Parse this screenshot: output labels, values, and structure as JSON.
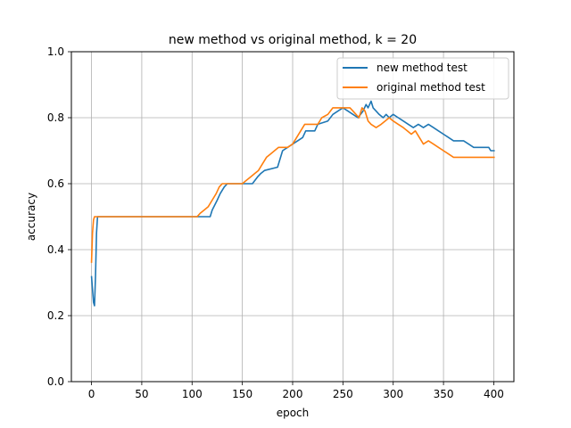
{
  "chart_data": {
    "type": "line",
    "title": "new method vs original method, k = 20",
    "xlabel": "epoch",
    "ylabel": "accuracy",
    "xlim": [
      -20,
      420
    ],
    "ylim": [
      0.0,
      1.0
    ],
    "grid": true,
    "legend_position": "top-right",
    "xticks": [
      0,
      50,
      100,
      150,
      200,
      250,
      300,
      350,
      400
    ],
    "yticks": [
      0.0,
      0.2,
      0.4,
      0.6,
      0.8,
      1.0
    ],
    "xtick_labels": [
      "0",
      "50",
      "100",
      "150",
      "200",
      "250",
      "300",
      "350",
      "400"
    ],
    "ytick_labels": [
      "0.0",
      "0.2",
      "0.4",
      "0.6",
      "0.8",
      "1.0"
    ],
    "series": [
      {
        "name": "new method test",
        "color": "#1f77b4",
        "points": [
          [
            0,
            0.32
          ],
          [
            1,
            0.28
          ],
          [
            2,
            0.24
          ],
          [
            3,
            0.23
          ],
          [
            4,
            0.32
          ],
          [
            5,
            0.45
          ],
          [
            6,
            0.5
          ],
          [
            110,
            0.5
          ],
          [
            118,
            0.5
          ],
          [
            120,
            0.52
          ],
          [
            125,
            0.55
          ],
          [
            128,
            0.57
          ],
          [
            132,
            0.59
          ],
          [
            135,
            0.6
          ],
          [
            160,
            0.6
          ],
          [
            165,
            0.62
          ],
          [
            168,
            0.63
          ],
          [
            172,
            0.64
          ],
          [
            185,
            0.65
          ],
          [
            190,
            0.7
          ],
          [
            195,
            0.71
          ],
          [
            200,
            0.72
          ],
          [
            205,
            0.73
          ],
          [
            210,
            0.74
          ],
          [
            213,
            0.76
          ],
          [
            222,
            0.76
          ],
          [
            225,
            0.78
          ],
          [
            235,
            0.79
          ],
          [
            240,
            0.81
          ],
          [
            245,
            0.82
          ],
          [
            250,
            0.83
          ],
          [
            255,
            0.82
          ],
          [
            260,
            0.81
          ],
          [
            265,
            0.8
          ],
          [
            270,
            0.82
          ],
          [
            273,
            0.84
          ],
          [
            275,
            0.83
          ],
          [
            278,
            0.85
          ],
          [
            280,
            0.83
          ],
          [
            283,
            0.82
          ],
          [
            286,
            0.81
          ],
          [
            290,
            0.8
          ],
          [
            293,
            0.81
          ],
          [
            296,
            0.8
          ],
          [
            300,
            0.81
          ],
          [
            305,
            0.8
          ],
          [
            310,
            0.79
          ],
          [
            315,
            0.78
          ],
          [
            320,
            0.77
          ],
          [
            325,
            0.78
          ],
          [
            330,
            0.77
          ],
          [
            335,
            0.78
          ],
          [
            340,
            0.77
          ],
          [
            345,
            0.76
          ],
          [
            350,
            0.75
          ],
          [
            355,
            0.74
          ],
          [
            360,
            0.73
          ],
          [
            370,
            0.73
          ],
          [
            375,
            0.72
          ],
          [
            380,
            0.71
          ],
          [
            395,
            0.71
          ],
          [
            397,
            0.7
          ],
          [
            401,
            0.7
          ]
        ]
      },
      {
        "name": "original method test",
        "color": "#ff7f0e",
        "points": [
          [
            0,
            0.36
          ],
          [
            1,
            0.45
          ],
          [
            2,
            0.49
          ],
          [
            3,
            0.5
          ],
          [
            105,
            0.5
          ],
          [
            108,
            0.51
          ],
          [
            112,
            0.52
          ],
          [
            116,
            0.53
          ],
          [
            120,
            0.55
          ],
          [
            124,
            0.57
          ],
          [
            127,
            0.59
          ],
          [
            130,
            0.6
          ],
          [
            150,
            0.6
          ],
          [
            154,
            0.61
          ],
          [
            158,
            0.62
          ],
          [
            162,
            0.63
          ],
          [
            166,
            0.64
          ],
          [
            170,
            0.66
          ],
          [
            174,
            0.68
          ],
          [
            178,
            0.69
          ],
          [
            182,
            0.7
          ],
          [
            186,
            0.71
          ],
          [
            195,
            0.71
          ],
          [
            200,
            0.72
          ],
          [
            204,
            0.74
          ],
          [
            208,
            0.76
          ],
          [
            212,
            0.78
          ],
          [
            225,
            0.78
          ],
          [
            229,
            0.8
          ],
          [
            235,
            0.81
          ],
          [
            240,
            0.83
          ],
          [
            257,
            0.83
          ],
          [
            260,
            0.82
          ],
          [
            263,
            0.81
          ],
          [
            266,
            0.8
          ],
          [
            269,
            0.83
          ],
          [
            272,
            0.82
          ],
          [
            275,
            0.79
          ],
          [
            278,
            0.78
          ],
          [
            283,
            0.77
          ],
          [
            288,
            0.78
          ],
          [
            292,
            0.79
          ],
          [
            296,
            0.8
          ],
          [
            300,
            0.79
          ],
          [
            305,
            0.78
          ],
          [
            310,
            0.77
          ],
          [
            314,
            0.76
          ],
          [
            318,
            0.75
          ],
          [
            322,
            0.76
          ],
          [
            326,
            0.74
          ],
          [
            330,
            0.72
          ],
          [
            335,
            0.73
          ],
          [
            340,
            0.72
          ],
          [
            345,
            0.71
          ],
          [
            350,
            0.7
          ],
          [
            355,
            0.69
          ],
          [
            360,
            0.68
          ],
          [
            370,
            0.68
          ],
          [
            401,
            0.68
          ]
        ]
      }
    ]
  }
}
